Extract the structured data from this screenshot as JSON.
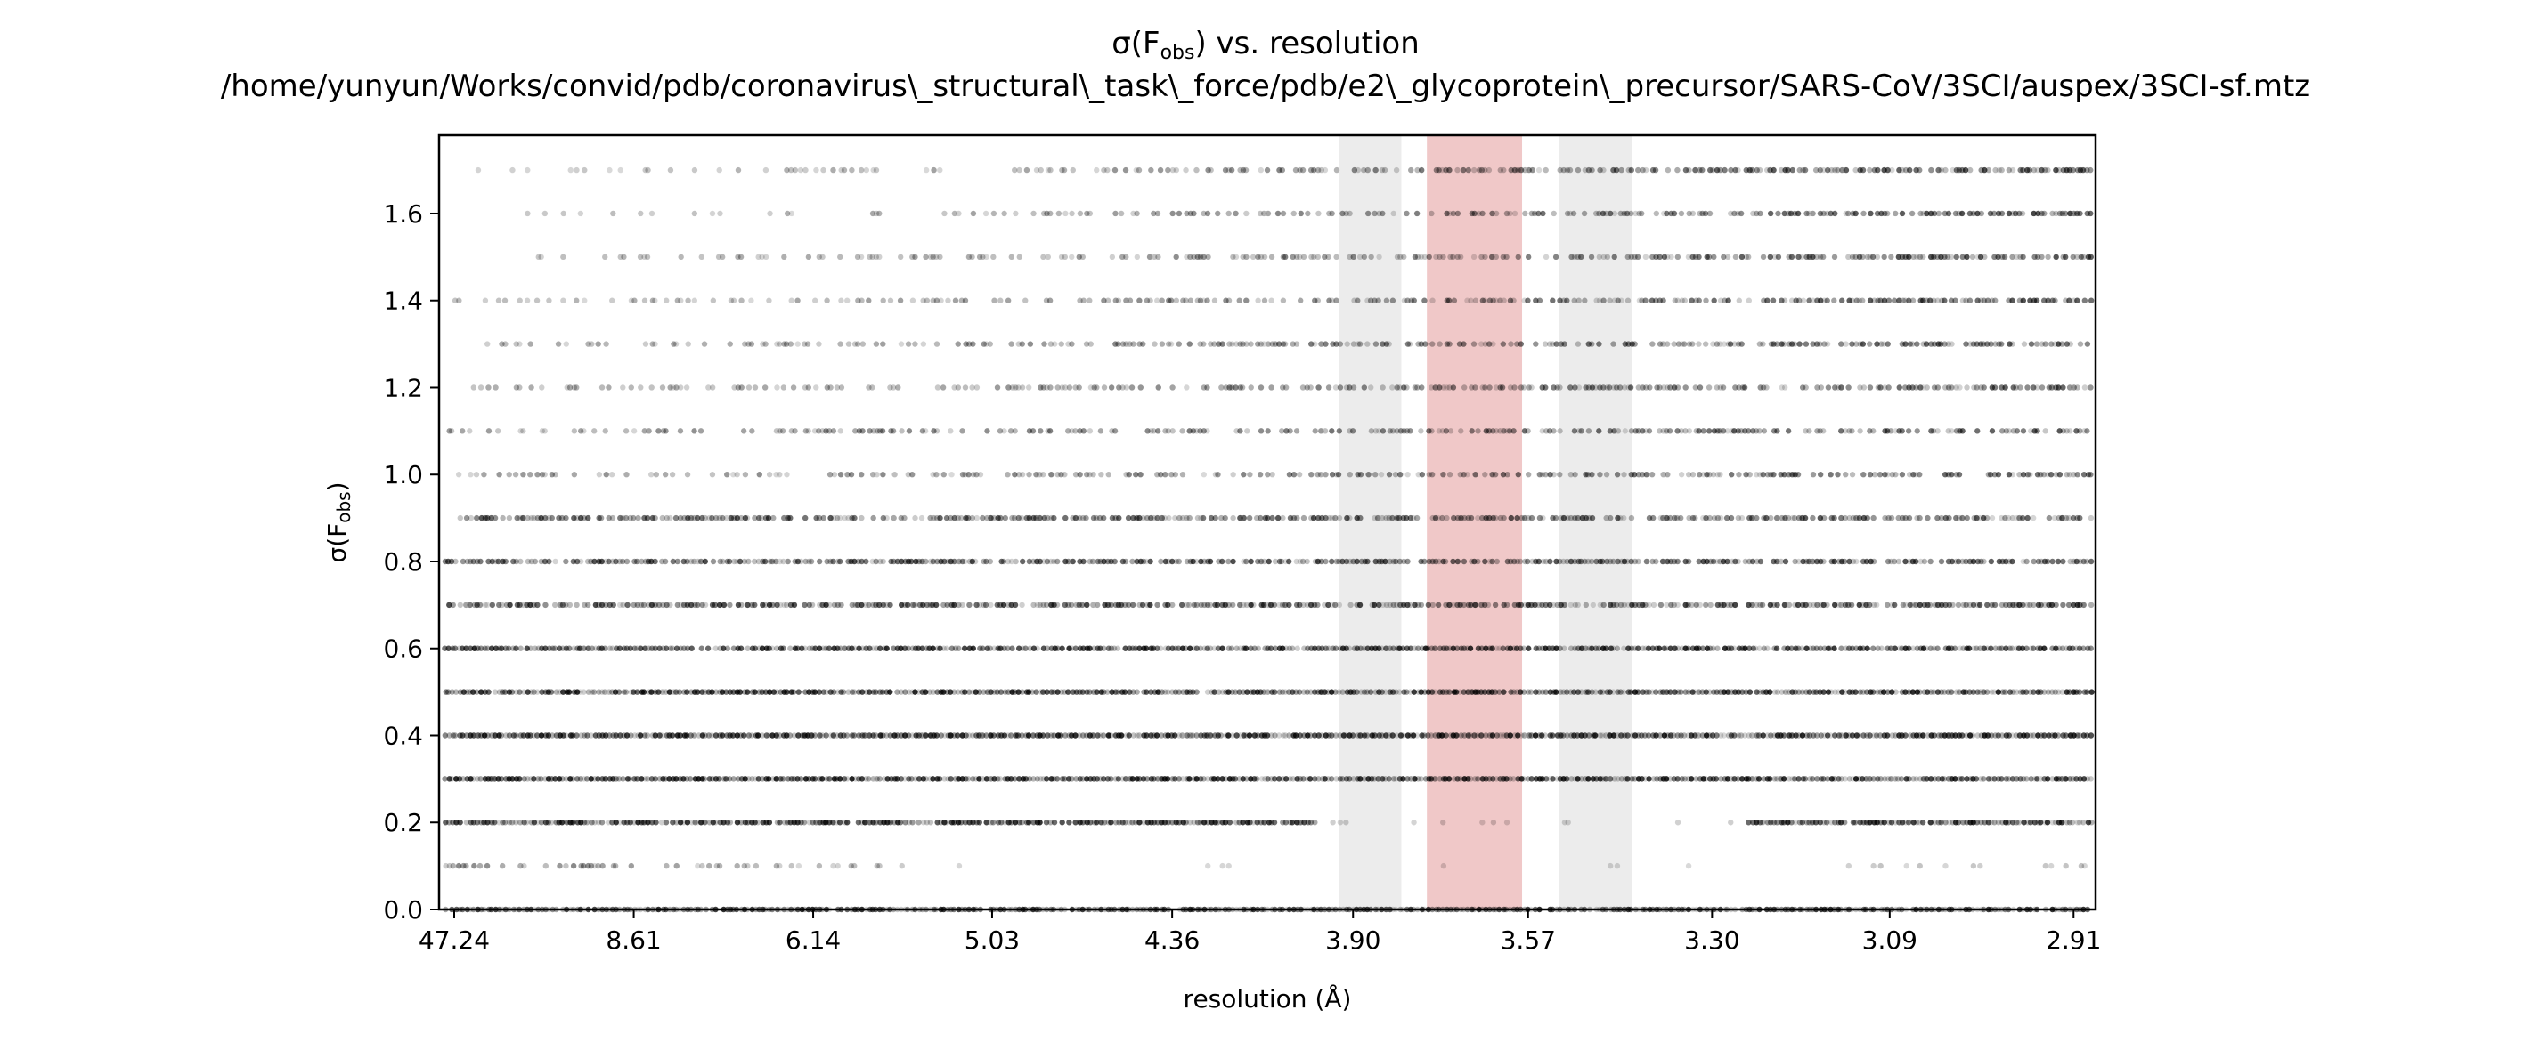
{
  "chart_data": {
    "type": "scatter",
    "title_lines": [
      "σ(Fₒₐₛ) vs. resolution",
      "/home/yunyun/Works/convid/pdb/coronavirus\\_structural\\_task\\_force/pdb/e2\\_glycoprotein\\_precursor/SARS-CoV/3SCI/auspex/3SCI-sf.mtz"
    ],
    "title_main": "σ(Fobs) vs. resolution",
    "title_path": "/home/yunyun/Works/convid/pdb/coronavirus\\_structural\\_task\\_force/pdb/e2\\_glycoprotein\\_precursor/SARS-CoV/3SCI/auspex/3SCI-sf.mtz",
    "xlabel": "resolution (Å)",
    "ylabel": "σ(Fobs)",
    "x_scale": "1/d^2",
    "x_tick_labels": [
      "47.24",
      "8.61",
      "6.14",
      "5.03",
      "4.36",
      "3.90",
      "3.57",
      "3.30",
      "3.09",
      "2.91"
    ],
    "x_tick_values": [
      47.24,
      8.61,
      6.14,
      5.03,
      4.36,
      3.9,
      3.57,
      3.3,
      3.09,
      2.91
    ],
    "ylim": [
      0.0,
      1.78
    ],
    "y_ticks": [
      0.0,
      0.2,
      0.4,
      0.6,
      0.8,
      1.0,
      1.2,
      1.4,
      1.6
    ],
    "y_tick_labels": [
      "0.0",
      "0.2",
      "0.4",
      "0.6",
      "0.8",
      "1.0",
      "1.2",
      "1.4",
      "1.6"
    ],
    "y_levels": [
      0.0,
      0.1,
      0.2,
      0.3,
      0.4,
      0.5,
      0.6,
      0.7,
      0.8,
      0.9,
      1.0,
      1.1,
      1.2,
      1.3,
      1.4,
      1.5,
      1.6,
      1.7
    ],
    "point_color": "#000000",
    "grid": false,
    "legend": "none",
    "highlight_bands": [
      {
        "d_from": 3.93,
        "d_to": 3.8,
        "color": "#d9d9d9",
        "kind": "gray"
      },
      {
        "d_from": 3.75,
        "d_to": 3.58,
        "color": "#e39a9a",
        "kind": "red"
      },
      {
        "d_from": 3.52,
        "d_to": 3.41,
        "color": "#d9d9d9",
        "kind": "gray"
      }
    ]
  }
}
